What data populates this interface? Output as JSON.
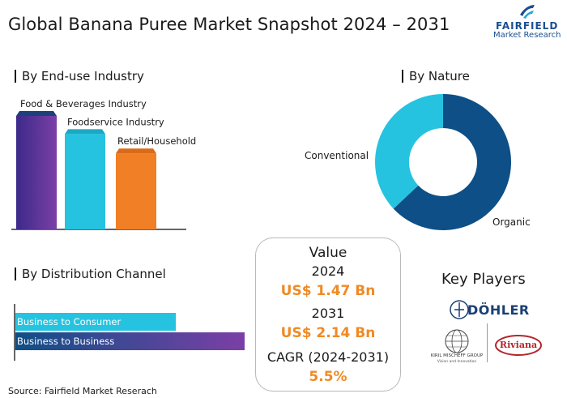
{
  "header": {
    "title": "Global Banana Puree Market Snapshot 2024 – 2031"
  },
  "logo": {
    "brand": "FAIRFIELD",
    "sub": "Market Research"
  },
  "sections": {
    "end_use": "By End-use Industry",
    "nature": "By Nature",
    "distribution": "By Distribution Channel"
  },
  "value_box": {
    "heading": "Value",
    "year1": "2024",
    "value1": "US$ 1.47 Bn",
    "year2": "2031",
    "value2": "US$ 2.14  Bn",
    "cagr_label": "CAGR (2024-2031)",
    "cagr_value": "5.5%"
  },
  "key_players": {
    "heading": "Key Players",
    "players": [
      "DÖHLER",
      "KIRIL MISCHEFF GROUP",
      "Vision and Innovation",
      "Riviana"
    ]
  },
  "footer": {
    "source": "Source: Fairfield Market Reserach"
  },
  "chart_data": [
    {
      "type": "bar",
      "title": "By End-use Industry",
      "categories": [
        "Food & Beverages Industry",
        "Foodservice Industry",
        "Retail/Household"
      ],
      "values": [
        100,
        84,
        67
      ],
      "colors": [
        "#6b3fa0",
        "#26c3e0",
        "#f07f26"
      ],
      "ylim": [
        0,
        100
      ]
    },
    {
      "type": "pie",
      "title": "By Nature",
      "categories": [
        "Organic",
        "Conventional"
      ],
      "values": [
        63,
        37
      ],
      "colors": [
        "#0d4f86",
        "#26c3e0"
      ]
    },
    {
      "type": "bar",
      "orientation": "horizontal",
      "title": "By Distribution Channel",
      "categories": [
        "Business to Consumer",
        "Business to Business"
      ],
      "values": [
        70,
        100
      ],
      "colors": [
        "#26c3e0",
        "#6b3fa0"
      ],
      "xlim": [
        0,
        100
      ]
    }
  ]
}
